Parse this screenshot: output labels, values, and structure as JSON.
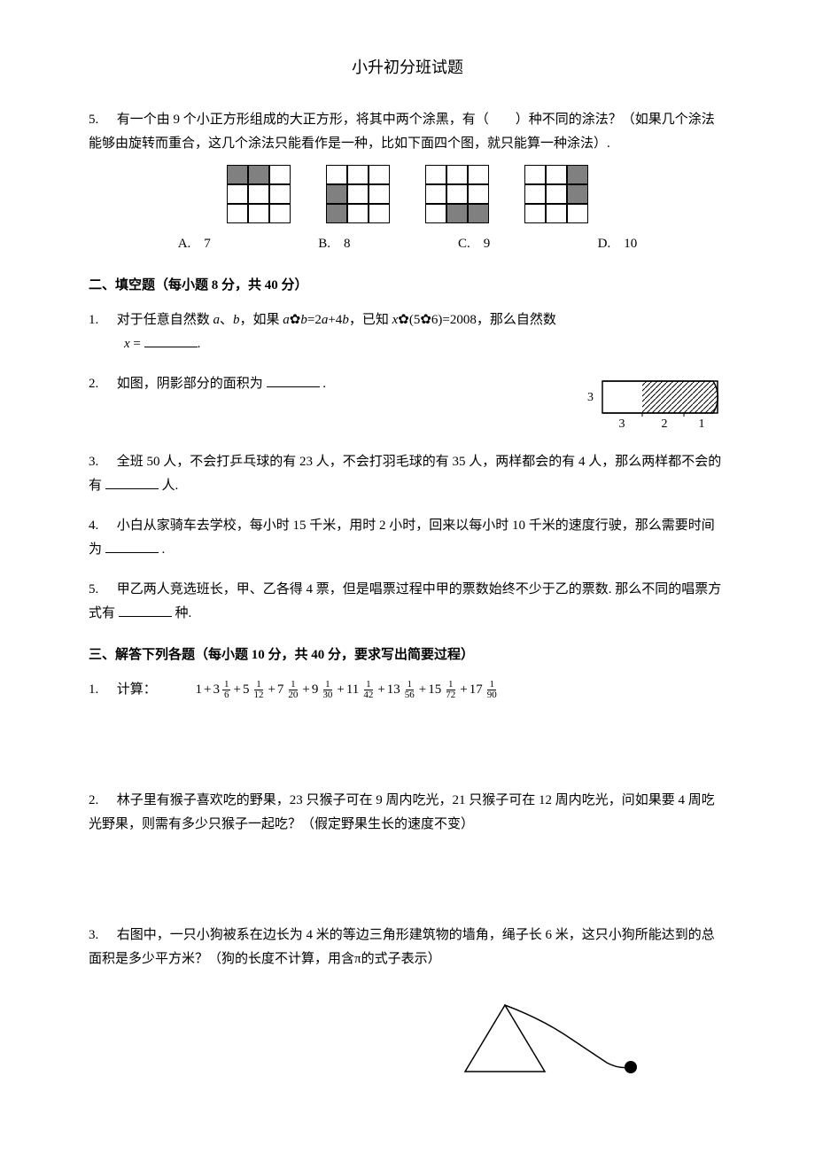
{
  "title": "小升初分班试题",
  "q5": {
    "num": "5.",
    "text": "有一个由 9 个小正方形组成的大正方形，将其中两个涂黑，有（　　）种不同的涂法？（如果几个涂法能够由旋转而重合，这几个涂法只能看作是一种，比如下面四个图，就只能算一种涂法）.",
    "gridCellSize": 24,
    "shadedColor": "#808080",
    "grids": [
      {
        "shaded": [
          0,
          1
        ]
      },
      {
        "shaded": [
          3,
          6
        ]
      },
      {
        "shaded": [
          7,
          8
        ]
      },
      {
        "shaded": [
          2,
          5
        ]
      }
    ],
    "options": [
      {
        "label": "A.",
        "val": "7"
      },
      {
        "label": "B.",
        "val": "8"
      },
      {
        "label": "C.",
        "val": "9"
      },
      {
        "label": "D.",
        "val": "10"
      }
    ]
  },
  "section2": {
    "header": "二、填空题（每小题 8 分，共 40 分）",
    "items": [
      {
        "num": "1.",
        "parts": [
          "对于任意自然数 ",
          "a",
          "、",
          "b",
          "，如果 ",
          "a",
          "✿",
          "b",
          "=2",
          "a",
          "+4",
          "b",
          "，已知 ",
          "x",
          "✿(5✿6)=2008，那么自然数"
        ],
        "line2_parts": [
          "x",
          " ="
        ],
        "blank": true
      },
      {
        "num": "2.",
        "text": "如图，阴影部分的面积为",
        "blank": true,
        "after": "."
      },
      {
        "num": "3.",
        "text": "全班 50 人，不会打乒乓球的有 23 人，不会打羽毛球的有 35 人，两样都会的有 4 人，那么两样都不会的有",
        "blank": true,
        "after": "人."
      },
      {
        "num": "4.",
        "text": "小白从家骑车去学校，每小时 15 千米，用时 2 小时，回来以每小时 10 千米的速度行驶，那么需要时间为",
        "blank": true,
        "after": "."
      },
      {
        "num": "5.",
        "text": "甲乙两人竞选班长，甲、乙各得 4 票，但是唱票过程中甲的票数始终不少于乙的票数. 那么不同的唱票方式有",
        "blank": true,
        "after": "种."
      }
    ]
  },
  "arcFigure": {
    "height": 3,
    "segments": [
      3,
      2,
      1
    ],
    "strokeColor": "#000000",
    "hatchColor": "#000000"
  },
  "section3": {
    "header": "三、解答下列各题（每小题 10 分，共 40 分，要求写出简要过程）",
    "items": [
      {
        "num": "1.",
        "label": "计算：",
        "terms": [
          {
            "w": "1",
            "plus": false
          },
          {
            "w": "3",
            "n": "1",
            "d": "6"
          },
          {
            "w": "5",
            "n": "1",
            "d": "12"
          },
          {
            "w": "7",
            "n": "1",
            "d": "20"
          },
          {
            "w": "9",
            "n": "1",
            "d": "30"
          },
          {
            "w": "11",
            "n": "1",
            "d": "42"
          },
          {
            "w": "13",
            "n": "1",
            "d": "56"
          },
          {
            "w": "15",
            "n": "1",
            "d": "72"
          },
          {
            "w": "17",
            "n": "1",
            "d": "90"
          }
        ]
      },
      {
        "num": "2.",
        "text": "林子里有猴子喜欢吃的野果，23 只猴子可在 9 周内吃光，21 只猴子可在 12 周内吃光，问如果要 4 周吃光野果，则需有多少只猴子一起吃？（假定野果生长的速度不变）"
      },
      {
        "num": "3.",
        "text": "右图中，一只小狗被系在边长为 4 米的等边三角形建筑物的墙角，绳子长 6 米，这只小狗所能达到的总面积是多少平方米？（狗的长度不计算，用含π的式子表示）"
      }
    ]
  },
  "triangleFigure": {
    "sideLength": 4,
    "ropeLength": 6,
    "strokeColor": "#000000",
    "dogColor": "#000000"
  }
}
